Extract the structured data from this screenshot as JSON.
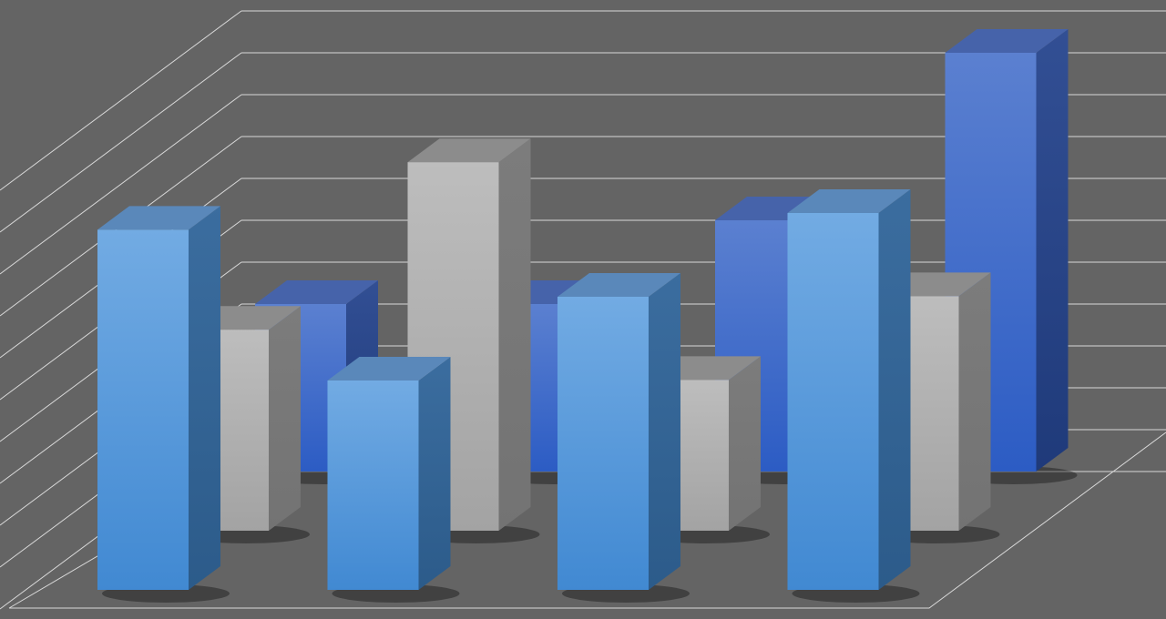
{
  "chart_data": {
    "type": "bar",
    "style": "3d-clustered-depth",
    "title": "",
    "xlabel": "",
    "ylabel": "",
    "categories": [
      "",
      "",
      "",
      ""
    ],
    "ylim": [
      0,
      11
    ],
    "grid": true,
    "legend": "none",
    "series": [
      {
        "row": "back",
        "color": "#3b66c8",
        "values": [
          4,
          4,
          6,
          10
        ]
      },
      {
        "row": "middle",
        "color": "#b0b0b0",
        "values": [
          4.8,
          8.8,
          3.6,
          5.6
        ]
      },
      {
        "row": "front",
        "color": "#5d9de0",
        "values": [
          8.6,
          5,
          7,
          9
        ]
      }
    ],
    "colors": {
      "background": "#646464",
      "grid": "#d8d8d8"
    }
  }
}
